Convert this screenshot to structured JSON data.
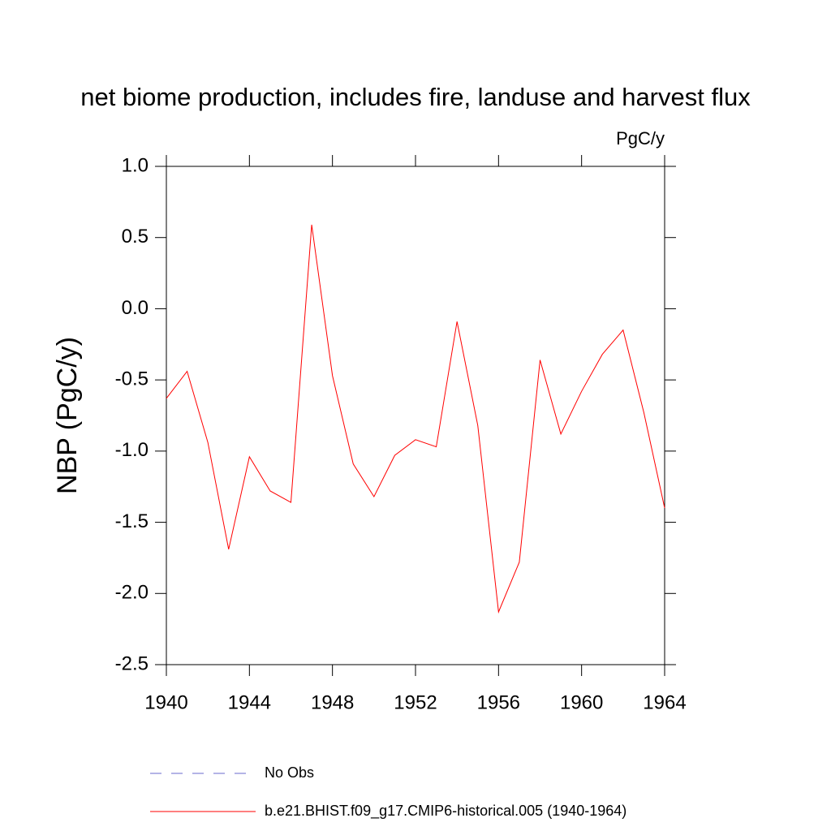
{
  "chart_data": {
    "type": "line",
    "title": "net biome production, includes fire, landuse and harvest flux",
    "units": "PgC/y",
    "y_label": "NBP  (PgC/y)",
    "x": [
      1940,
      1941,
      1942,
      1943,
      1944,
      1945,
      1946,
      1947,
      1948,
      1949,
      1950,
      1951,
      1952,
      1953,
      1954,
      1955,
      1956,
      1957,
      1958,
      1959,
      1960,
      1961,
      1962,
      1963,
      1964
    ],
    "series": [
      {
        "name": "No Obs",
        "color": "#6a6acd",
        "dashed": true,
        "values": [
          null,
          null,
          null,
          null,
          null,
          null,
          null,
          null,
          null,
          null,
          null,
          null,
          null,
          null,
          null,
          null,
          null,
          null,
          null,
          null,
          null,
          null,
          null,
          null,
          null
        ]
      },
      {
        "name": "b.e21.BHIST.f09_g17.CMIP6-historical.005 (1940-1964)",
        "color": "#ff0000",
        "dashed": false,
        "values": [
          -0.63,
          -0.44,
          -0.94,
          -1.69,
          -1.04,
          -1.28,
          -1.36,
          0.59,
          -0.47,
          -1.09,
          -1.32,
          -1.03,
          -0.92,
          -0.97,
          -0.09,
          -0.82,
          -2.13,
          -1.78,
          -0.36,
          -0.88,
          -0.58,
          -0.32,
          -0.15,
          -0.73,
          -1.4
        ]
      }
    ],
    "xlim": [
      1940,
      1964
    ],
    "xticks": [
      1940,
      1944,
      1948,
      1952,
      1956,
      1960,
      1964
    ],
    "ylim": [
      -2.5,
      1.0
    ],
    "yticks": [
      {
        "value": -2.5,
        "label": "-2.5"
      },
      {
        "value": -2,
        "label": "-2.0"
      },
      {
        "value": -1.5,
        "label": "-1.5"
      },
      {
        "value": -1,
        "label": "-1.0"
      },
      {
        "value": -0.5,
        "label": "-0.5"
      },
      {
        "value": 0,
        "label": "0.0"
      },
      {
        "value": 0.5,
        "label": "0.5"
      },
      {
        "value": 1,
        "label": "1.0"
      }
    ],
    "grid": false
  }
}
